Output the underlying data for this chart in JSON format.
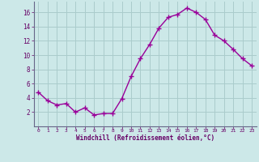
{
  "x": [
    0,
    1,
    2,
    3,
    4,
    5,
    6,
    7,
    8,
    9,
    10,
    11,
    12,
    13,
    14,
    15,
    16,
    17,
    18,
    19,
    20,
    21,
    22,
    23
  ],
  "y": [
    4.8,
    3.6,
    3.0,
    3.2,
    2.0,
    2.6,
    1.6,
    1.8,
    1.8,
    3.9,
    7.0,
    9.5,
    11.5,
    13.8,
    15.3,
    15.7,
    16.6,
    16.0,
    15.0,
    12.8,
    12.0,
    10.8,
    9.5,
    8.5
  ],
  "line_color": "#990099",
  "marker": "+",
  "markersize": 4,
  "linewidth": 1.0,
  "bg_color": "#cce8e8",
  "grid_color": "#aacccc",
  "xlabel": "Windchill (Refroidissement éolien,°C)",
  "xlabel_color": "#660066",
  "tick_color": "#660066",
  "xlim": [
    -0.5,
    23.5
  ],
  "ylim": [
    0,
    17.5
  ],
  "yticks": [
    2,
    4,
    6,
    8,
    10,
    12,
    14,
    16
  ],
  "xticks": [
    0,
    1,
    2,
    3,
    4,
    5,
    6,
    7,
    8,
    9,
    10,
    11,
    12,
    13,
    14,
    15,
    16,
    17,
    18,
    19,
    20,
    21,
    22,
    23
  ],
  "xtick_labels": [
    "0",
    "1",
    "2",
    "3",
    "4",
    "5",
    "6",
    "7",
    "8",
    "9",
    "10",
    "11",
    "12",
    "13",
    "14",
    "15",
    "16",
    "17",
    "18",
    "19",
    "20",
    "21",
    "22",
    "23"
  ],
  "figsize": [
    3.2,
    2.0
  ],
  "dpi": 100
}
